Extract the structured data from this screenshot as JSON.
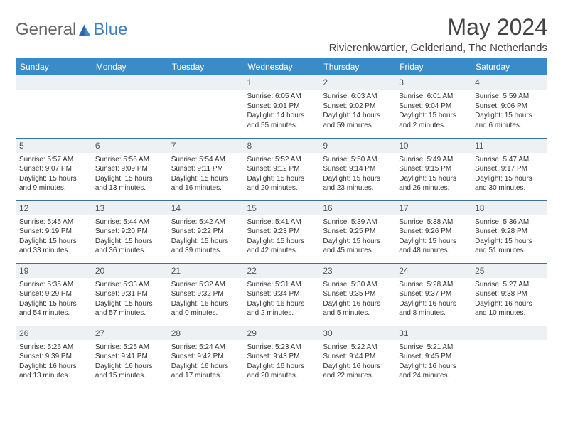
{
  "brand": {
    "part1": "General",
    "part2": "Blue"
  },
  "title": "May 2024",
  "location": "Rivierenkwartier, Gelderland, The Netherlands",
  "colors": {
    "header_bg": "#3b8bc7",
    "header_text": "#ffffff",
    "border": "#3b6f9e",
    "daynum_bg": "#eef1f3",
    "text": "#333333",
    "logo_blue": "#3b7fc4"
  },
  "weekdays": [
    "Sunday",
    "Monday",
    "Tuesday",
    "Wednesday",
    "Thursday",
    "Friday",
    "Saturday"
  ],
  "weeks": [
    [
      null,
      null,
      null,
      {
        "n": "1",
        "sr": "Sunrise: 6:05 AM",
        "ss": "Sunset: 9:01 PM",
        "dl1": "Daylight: 14 hours",
        "dl2": "and 55 minutes."
      },
      {
        "n": "2",
        "sr": "Sunrise: 6:03 AM",
        "ss": "Sunset: 9:02 PM",
        "dl1": "Daylight: 14 hours",
        "dl2": "and 59 minutes."
      },
      {
        "n": "3",
        "sr": "Sunrise: 6:01 AM",
        "ss": "Sunset: 9:04 PM",
        "dl1": "Daylight: 15 hours",
        "dl2": "and 2 minutes."
      },
      {
        "n": "4",
        "sr": "Sunrise: 5:59 AM",
        "ss": "Sunset: 9:06 PM",
        "dl1": "Daylight: 15 hours",
        "dl2": "and 6 minutes."
      }
    ],
    [
      {
        "n": "5",
        "sr": "Sunrise: 5:57 AM",
        "ss": "Sunset: 9:07 PM",
        "dl1": "Daylight: 15 hours",
        "dl2": "and 9 minutes."
      },
      {
        "n": "6",
        "sr": "Sunrise: 5:56 AM",
        "ss": "Sunset: 9:09 PM",
        "dl1": "Daylight: 15 hours",
        "dl2": "and 13 minutes."
      },
      {
        "n": "7",
        "sr": "Sunrise: 5:54 AM",
        "ss": "Sunset: 9:11 PM",
        "dl1": "Daylight: 15 hours",
        "dl2": "and 16 minutes."
      },
      {
        "n": "8",
        "sr": "Sunrise: 5:52 AM",
        "ss": "Sunset: 9:12 PM",
        "dl1": "Daylight: 15 hours",
        "dl2": "and 20 minutes."
      },
      {
        "n": "9",
        "sr": "Sunrise: 5:50 AM",
        "ss": "Sunset: 9:14 PM",
        "dl1": "Daylight: 15 hours",
        "dl2": "and 23 minutes."
      },
      {
        "n": "10",
        "sr": "Sunrise: 5:49 AM",
        "ss": "Sunset: 9:15 PM",
        "dl1": "Daylight: 15 hours",
        "dl2": "and 26 minutes."
      },
      {
        "n": "11",
        "sr": "Sunrise: 5:47 AM",
        "ss": "Sunset: 9:17 PM",
        "dl1": "Daylight: 15 hours",
        "dl2": "and 30 minutes."
      }
    ],
    [
      {
        "n": "12",
        "sr": "Sunrise: 5:45 AM",
        "ss": "Sunset: 9:19 PM",
        "dl1": "Daylight: 15 hours",
        "dl2": "and 33 minutes."
      },
      {
        "n": "13",
        "sr": "Sunrise: 5:44 AM",
        "ss": "Sunset: 9:20 PM",
        "dl1": "Daylight: 15 hours",
        "dl2": "and 36 minutes."
      },
      {
        "n": "14",
        "sr": "Sunrise: 5:42 AM",
        "ss": "Sunset: 9:22 PM",
        "dl1": "Daylight: 15 hours",
        "dl2": "and 39 minutes."
      },
      {
        "n": "15",
        "sr": "Sunrise: 5:41 AM",
        "ss": "Sunset: 9:23 PM",
        "dl1": "Daylight: 15 hours",
        "dl2": "and 42 minutes."
      },
      {
        "n": "16",
        "sr": "Sunrise: 5:39 AM",
        "ss": "Sunset: 9:25 PM",
        "dl1": "Daylight: 15 hours",
        "dl2": "and 45 minutes."
      },
      {
        "n": "17",
        "sr": "Sunrise: 5:38 AM",
        "ss": "Sunset: 9:26 PM",
        "dl1": "Daylight: 15 hours",
        "dl2": "and 48 minutes."
      },
      {
        "n": "18",
        "sr": "Sunrise: 5:36 AM",
        "ss": "Sunset: 9:28 PM",
        "dl1": "Daylight: 15 hours",
        "dl2": "and 51 minutes."
      }
    ],
    [
      {
        "n": "19",
        "sr": "Sunrise: 5:35 AM",
        "ss": "Sunset: 9:29 PM",
        "dl1": "Daylight: 15 hours",
        "dl2": "and 54 minutes."
      },
      {
        "n": "20",
        "sr": "Sunrise: 5:33 AM",
        "ss": "Sunset: 9:31 PM",
        "dl1": "Daylight: 15 hours",
        "dl2": "and 57 minutes."
      },
      {
        "n": "21",
        "sr": "Sunrise: 5:32 AM",
        "ss": "Sunset: 9:32 PM",
        "dl1": "Daylight: 16 hours",
        "dl2": "and 0 minutes."
      },
      {
        "n": "22",
        "sr": "Sunrise: 5:31 AM",
        "ss": "Sunset: 9:34 PM",
        "dl1": "Daylight: 16 hours",
        "dl2": "and 2 minutes."
      },
      {
        "n": "23",
        "sr": "Sunrise: 5:30 AM",
        "ss": "Sunset: 9:35 PM",
        "dl1": "Daylight: 16 hours",
        "dl2": "and 5 minutes."
      },
      {
        "n": "24",
        "sr": "Sunrise: 5:28 AM",
        "ss": "Sunset: 9:37 PM",
        "dl1": "Daylight: 16 hours",
        "dl2": "and 8 minutes."
      },
      {
        "n": "25",
        "sr": "Sunrise: 5:27 AM",
        "ss": "Sunset: 9:38 PM",
        "dl1": "Daylight: 16 hours",
        "dl2": "and 10 minutes."
      }
    ],
    [
      {
        "n": "26",
        "sr": "Sunrise: 5:26 AM",
        "ss": "Sunset: 9:39 PM",
        "dl1": "Daylight: 16 hours",
        "dl2": "and 13 minutes."
      },
      {
        "n": "27",
        "sr": "Sunrise: 5:25 AM",
        "ss": "Sunset: 9:41 PM",
        "dl1": "Daylight: 16 hours",
        "dl2": "and 15 minutes."
      },
      {
        "n": "28",
        "sr": "Sunrise: 5:24 AM",
        "ss": "Sunset: 9:42 PM",
        "dl1": "Daylight: 16 hours",
        "dl2": "and 17 minutes."
      },
      {
        "n": "29",
        "sr": "Sunrise: 5:23 AM",
        "ss": "Sunset: 9:43 PM",
        "dl1": "Daylight: 16 hours",
        "dl2": "and 20 minutes."
      },
      {
        "n": "30",
        "sr": "Sunrise: 5:22 AM",
        "ss": "Sunset: 9:44 PM",
        "dl1": "Daylight: 16 hours",
        "dl2": "and 22 minutes."
      },
      {
        "n": "31",
        "sr": "Sunrise: 5:21 AM",
        "ss": "Sunset: 9:45 PM",
        "dl1": "Daylight: 16 hours",
        "dl2": "and 24 minutes."
      },
      null
    ]
  ]
}
